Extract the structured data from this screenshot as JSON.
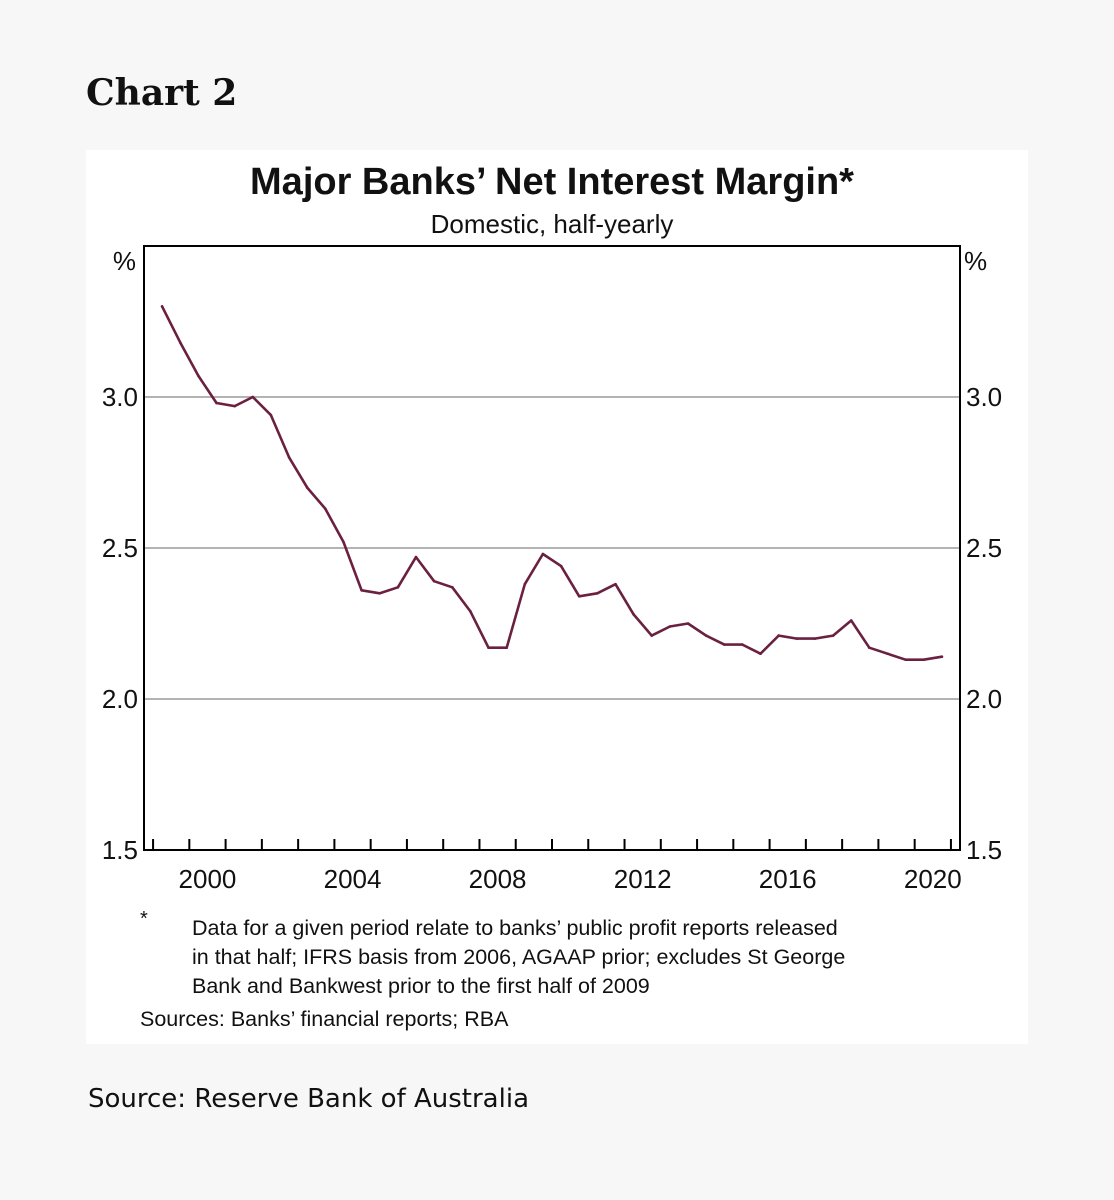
{
  "caption": "Chart 2",
  "chart_data": {
    "type": "line",
    "title": "Major Banks’ Net Interest Margin*",
    "subtitle": "Domestic, half-yearly",
    "unit_left": "%",
    "unit_right": "%",
    "ylim": [
      1.5,
      3.5
    ],
    "xlim": [
      1998.75,
      2021.25
    ],
    "yticks": [
      1.5,
      2.0,
      2.5,
      3.0
    ],
    "ytick_labels": [
      "1.5",
      "2.0",
      "2.5",
      "3.0"
    ],
    "xticks": [
      2000,
      2004,
      2008,
      2012,
      2016,
      2020
    ],
    "xtick_labels": [
      "2000",
      "2004",
      "2008",
      "2012",
      "2016",
      "2020"
    ],
    "grid": true,
    "series": [
      {
        "color": "#6b2040",
        "x": [
          1999.25,
          1999.75,
          2000.25,
          2000.75,
          2001.25,
          2001.75,
          2002.25,
          2002.75,
          2003.25,
          2003.75,
          2004.25,
          2004.75,
          2005.25,
          2005.75,
          2006.25,
          2006.75,
          2007.25,
          2007.75,
          2008.25,
          2008.75,
          2009.25,
          2009.75,
          2010.25,
          2010.75,
          2011.25,
          2011.75,
          2012.25,
          2012.75,
          2013.25,
          2013.75,
          2014.25,
          2014.75,
          2015.25,
          2015.75,
          2016.25,
          2016.75,
          2017.25,
          2017.75,
          2018.25,
          2018.75,
          2019.25,
          2019.75,
          2020.25,
          2020.75
        ],
        "values": [
          3.3,
          3.18,
          3.07,
          2.98,
          2.97,
          3.0,
          2.94,
          2.8,
          2.7,
          2.63,
          2.52,
          2.36,
          2.35,
          2.37,
          2.47,
          2.39,
          2.37,
          2.29,
          2.17,
          2.17,
          2.38,
          2.48,
          2.44,
          2.34,
          2.35,
          2.38,
          2.28,
          2.21,
          2.24,
          2.25,
          2.21,
          2.18,
          2.18,
          2.15,
          2.21,
          2.2,
          2.2,
          2.21,
          2.26,
          2.17,
          2.15,
          2.13,
          2.13,
          2.14
        ]
      }
    ]
  },
  "footnote": {
    "marker": "*",
    "lines": [
      "Data for a given period relate to banks’ public profit reports released",
      "in that half; IFRS basis from 2006, AGAAP prior; excludes St George",
      "Bank and Bankwest prior to the first half of 2009"
    ]
  },
  "sources": "Sources: Banks’ financial reports; RBA",
  "source_credit": "Source: Reserve Bank of Australia"
}
